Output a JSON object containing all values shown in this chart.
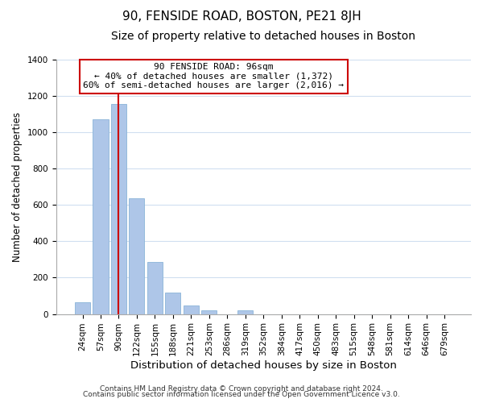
{
  "title": "90, FENSIDE ROAD, BOSTON, PE21 8JH",
  "subtitle": "Size of property relative to detached houses in Boston",
  "xlabel": "Distribution of detached houses by size in Boston",
  "ylabel": "Number of detached properties",
  "bar_labels": [
    "24sqm",
    "57sqm",
    "90sqm",
    "122sqm",
    "155sqm",
    "188sqm",
    "221sqm",
    "253sqm",
    "286sqm",
    "319sqm",
    "352sqm",
    "384sqm",
    "417sqm",
    "450sqm",
    "483sqm",
    "515sqm",
    "548sqm",
    "581sqm",
    "614sqm",
    "646sqm",
    "679sqm"
  ],
  "bar_values": [
    65,
    1070,
    1155,
    635,
    285,
    120,
    47,
    20,
    0,
    22,
    0,
    0,
    0,
    0,
    0,
    0,
    0,
    0,
    0,
    0,
    0
  ],
  "bar_color": "#aec6e8",
  "bar_edge_color": "#8ab4d8",
  "vline_x": 2,
  "vline_color": "#cc0000",
  "annotation_title": "90 FENSIDE ROAD: 96sqm",
  "annotation_line1": "← 40% of detached houses are smaller (1,372)",
  "annotation_line2": "60% of semi-detached houses are larger (2,016) →",
  "annotation_box_facecolor": "#ffffff",
  "annotation_box_edgecolor": "#cc0000",
  "ylim": [
    0,
    1400
  ],
  "yticks": [
    0,
    200,
    400,
    600,
    800,
    1000,
    1200,
    1400
  ],
  "footnote1": "Contains HM Land Registry data © Crown copyright and database right 2024.",
  "footnote2": "Contains public sector information licensed under the Open Government Licence v3.0.",
  "title_fontsize": 11,
  "subtitle_fontsize": 10,
  "xlabel_fontsize": 9.5,
  "ylabel_fontsize": 8.5,
  "tick_fontsize": 7.5,
  "footnote_fontsize": 6.5,
  "bg_color": "#ffffff",
  "grid_color": "#d0dff0"
}
